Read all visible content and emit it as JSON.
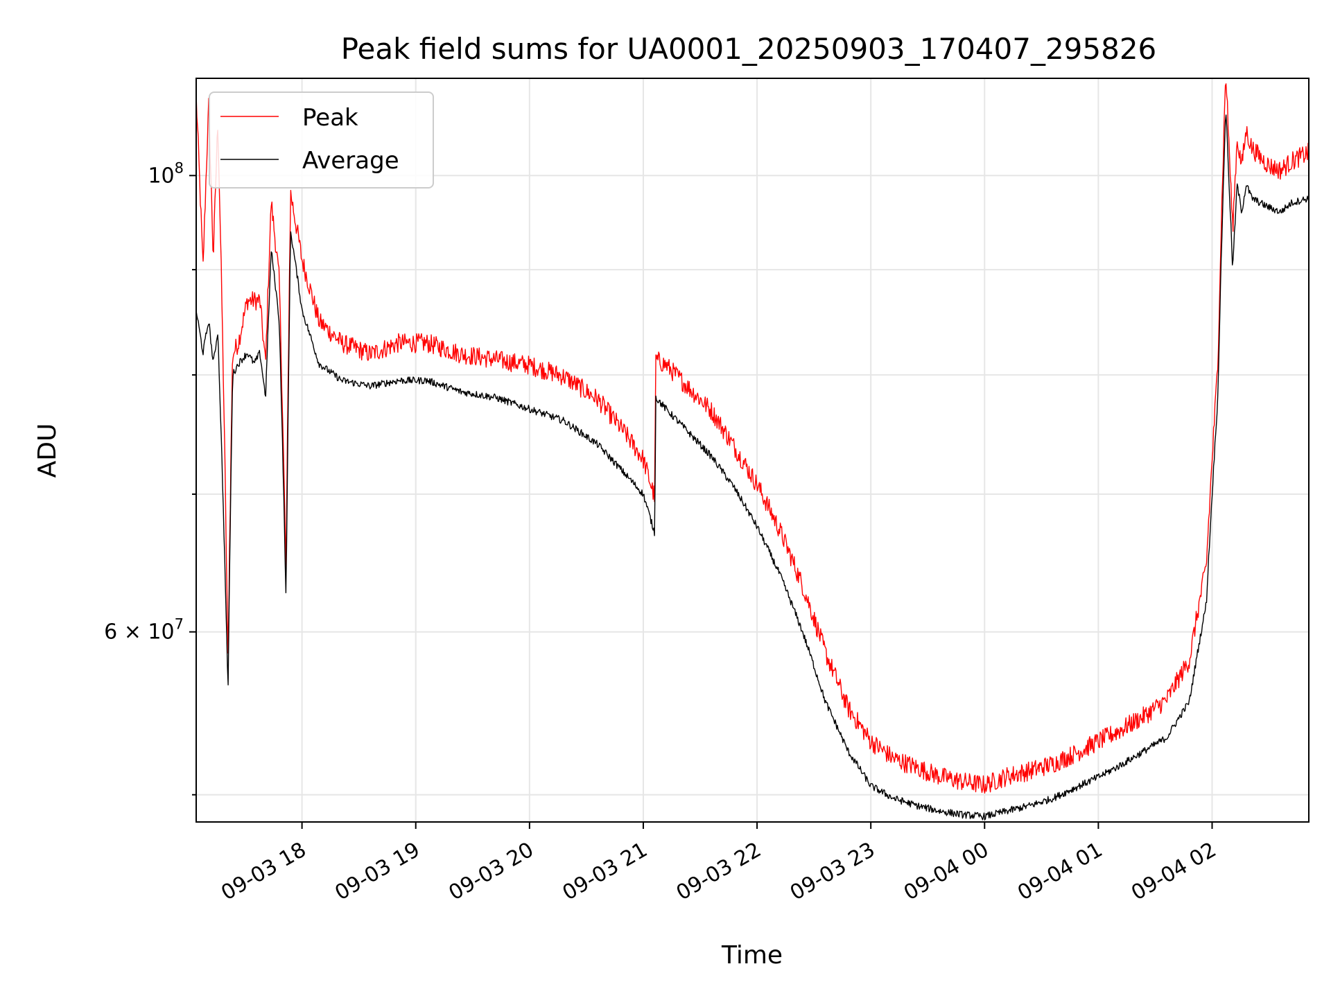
{
  "chart_data": {
    "type": "line",
    "title": "Peak field sums for UA0001_20250903_170407_295826",
    "xlabel": "Time",
    "ylabel": "ADU",
    "yscale": "log",
    "grid": true,
    "legend_position": "upper-left",
    "x_unit": "hours since 09-03 00:00",
    "xlim": [
      17.07,
      26.85
    ],
    "ylim": [
      48500000,
      111500000
    ],
    "x_ticks": [
      {
        "value": 18,
        "label": "09-03 18"
      },
      {
        "value": 19,
        "label": "09-03 19"
      },
      {
        "value": 20,
        "label": "09-03 20"
      },
      {
        "value": 21,
        "label": "09-03 21"
      },
      {
        "value": 22,
        "label": "09-03 22"
      },
      {
        "value": 23,
        "label": "09-03 23"
      },
      {
        "value": 24,
        "label": "09-04 00"
      },
      {
        "value": 25,
        "label": "09-04 01"
      },
      {
        "value": 26,
        "label": "09-04 02"
      }
    ],
    "y_major_ticks": [
      {
        "value": 60000000,
        "mantissa": "6",
        "base": "10",
        "exponent": "7"
      },
      {
        "value": 100000000,
        "mantissa": "",
        "base": "10",
        "exponent": "8"
      }
    ],
    "y_minor_gridlines": [
      50000000,
      70000000,
      80000000,
      90000000
    ],
    "series": [
      {
        "name": "Peak",
        "color": "#ff0000",
        "x": [
          17.07,
          17.13,
          17.18,
          17.22,
          17.26,
          17.35,
          17.39,
          17.44,
          17.52,
          17.58,
          17.63,
          17.68,
          17.73,
          17.8,
          17.86,
          17.9,
          18.0,
          18.15,
          18.35,
          18.6,
          18.85,
          19.1,
          19.4,
          19.7,
          20.0,
          20.3,
          20.6,
          20.85,
          21.0,
          21.1,
          21.11,
          21.2,
          21.4,
          21.6,
          21.8,
          22.0,
          22.2,
          22.4,
          22.6,
          22.8,
          23.0,
          23.2,
          23.4,
          23.6,
          23.8,
          24.0,
          24.2,
          24.4,
          24.6,
          24.8,
          25.0,
          25.2,
          25.4,
          25.6,
          25.8,
          25.95,
          26.05,
          26.12,
          26.18,
          26.22,
          26.26,
          26.3,
          26.35,
          26.42,
          26.5,
          26.6,
          26.7,
          26.85
        ],
        "values": [
          108000000,
          89000000,
          107000000,
          90000000,
          105000000,
          57000000,
          81000000,
          82000000,
          86000000,
          86000000,
          86000000,
          80000000,
          96000000,
          88000000,
          63000000,
          97000000,
          90000000,
          84000000,
          82000000,
          81000000,
          82000000,
          82000000,
          81000000,
          80500000,
          80000000,
          79000000,
          77000000,
          74000000,
          72000000,
          69000000,
          80500000,
          80000000,
          78000000,
          76000000,
          73000000,
          70000000,
          66500000,
          62500000,
          58000000,
          54500000,
          52500000,
          51500000,
          51000000,
          50500000,
          50200000,
          50000000,
          50500000,
          50800000,
          51200000,
          51800000,
          52500000,
          53200000,
          54000000,
          55000000,
          57500000,
          64000000,
          80000000,
          111000000,
          93000000,
          103000000,
          100000000,
          104000000,
          102000000,
          101000000,
          100000000,
          99500000,
          100500000,
          101500000
        ]
      },
      {
        "name": "Average",
        "color": "#000000",
        "x": [
          17.07,
          17.13,
          17.18,
          17.22,
          17.26,
          17.35,
          17.39,
          17.44,
          17.52,
          17.58,
          17.63,
          17.68,
          17.73,
          17.8,
          17.86,
          17.9,
          18.0,
          18.15,
          18.35,
          18.6,
          18.85,
          19.1,
          19.4,
          19.7,
          20.0,
          20.3,
          20.6,
          20.85,
          21.0,
          21.1,
          21.11,
          21.2,
          21.4,
          21.6,
          21.8,
          22.0,
          22.2,
          22.4,
          22.6,
          22.8,
          23.0,
          23.2,
          23.4,
          23.6,
          23.8,
          24.0,
          24.2,
          24.4,
          24.6,
          24.8,
          25.0,
          25.2,
          25.4,
          25.6,
          25.8,
          25.95,
          26.05,
          26.12,
          26.18,
          26.22,
          26.26,
          26.3,
          26.35,
          26.42,
          26.5,
          26.6,
          26.7,
          26.85
        ],
        "values": [
          86000000,
          82000000,
          85000000,
          81000000,
          84000000,
          56000000,
          80000000,
          81000000,
          82000000,
          81000000,
          82000000,
          78000000,
          92000000,
          85000000,
          62000000,
          94000000,
          86000000,
          81000000,
          79500000,
          79000000,
          79500000,
          79500000,
          78500000,
          78000000,
          77000000,
          76000000,
          74000000,
          71500000,
          70000000,
          67000000,
          78000000,
          77000000,
          75000000,
          73000000,
          70500000,
          67500000,
          64000000,
          60000000,
          55500000,
          52500000,
          50500000,
          49800000,
          49400000,
          49100000,
          48900000,
          48800000,
          49100000,
          49400000,
          49800000,
          50400000,
          51000000,
          51700000,
          52500000,
          53300000,
          55500000,
          62000000,
          78000000,
          108000000,
          90000000,
          99000000,
          96000000,
          99000000,
          97500000,
          97000000,
          96500000,
          96000000,
          97000000,
          97500000
        ]
      }
    ]
  }
}
